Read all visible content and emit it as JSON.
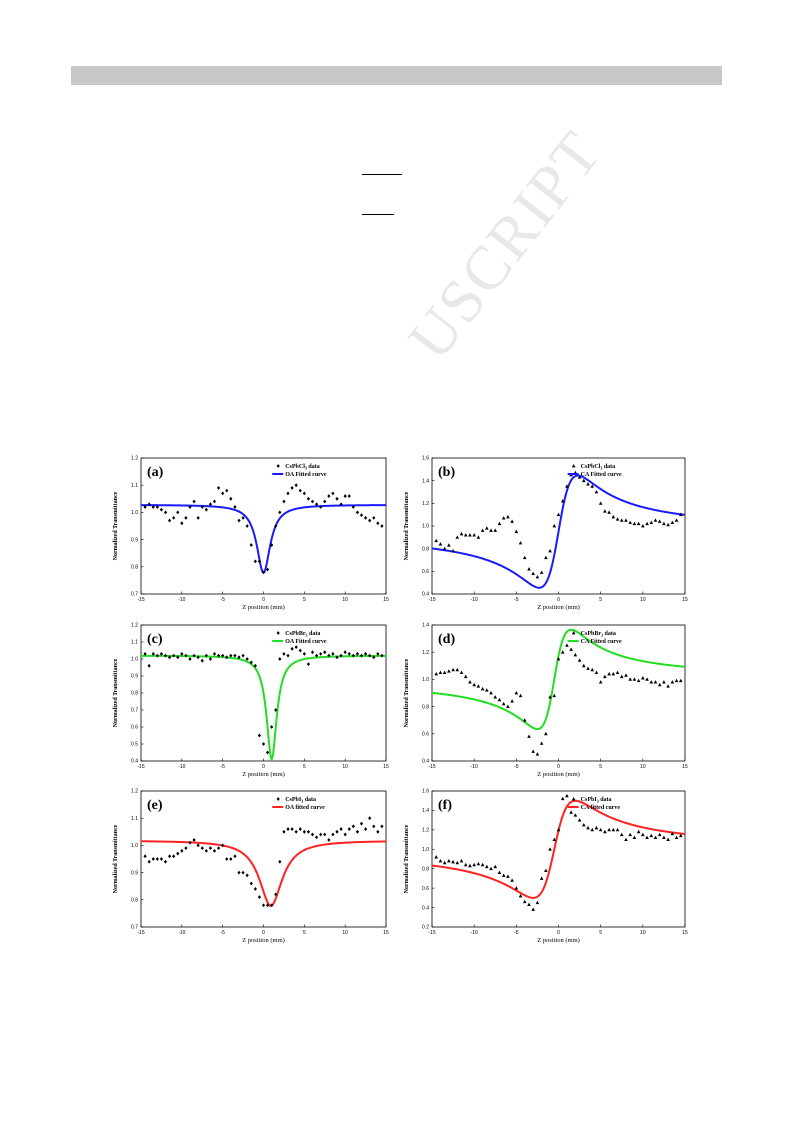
{
  "page": {
    "header_bar_color": "#c8c8c8"
  },
  "watermark": {
    "text": "MANUSCRIPT",
    "visible_text": "USCRIPT"
  },
  "chart_data": [
    {
      "id": "a",
      "type": "scatter",
      "panel_label": "(a)",
      "xlabel": "Z position (mm)",
      "ylabel": "Normalized Transmittance",
      "xlim": [
        -15,
        15
      ],
      "ylim": [
        0.7,
        1.2
      ],
      "xticks": [
        -15,
        -10,
        -5,
        0,
        5,
        10,
        15
      ],
      "yticks": [
        0.7,
        0.8,
        0.9,
        1.0,
        1.1,
        1.2
      ],
      "legend_position": "top-right",
      "series": [
        {
          "name": "CsPbCl",
          "subscript": "3",
          "suffix": " data",
          "marker": "diamond",
          "color": "#000000",
          "x": [
            -14.5,
            -14,
            -13.5,
            -13,
            -12.5,
            -12,
            -11.5,
            -11,
            -10.5,
            -10,
            -9.5,
            -9,
            -8.5,
            -8,
            -7.5,
            -7,
            -6.5,
            -6,
            -5.5,
            -5,
            -4.5,
            -4,
            -3.5,
            -3,
            -2.5,
            -2,
            -1.5,
            -1,
            -0.5,
            0,
            0.5,
            1,
            1.5,
            2,
            2.5,
            3,
            3.5,
            4,
            4.5,
            5,
            5.5,
            6,
            6.5,
            7,
            7.5,
            8,
            8.5,
            9,
            9.5,
            10,
            10.5,
            11,
            11.5,
            12,
            12.5,
            13,
            13.5,
            14,
            14.5
          ],
          "y": [
            1.02,
            1.03,
            1.02,
            1.02,
            1.01,
            1.0,
            0.97,
            0.98,
            1.0,
            0.96,
            0.98,
            1.02,
            1.04,
            0.98,
            1.02,
            1.01,
            1.03,
            1.04,
            1.09,
            1.07,
            1.08,
            1.05,
            1.02,
            0.97,
            0.98,
            0.95,
            0.88,
            0.82,
            0.82,
            0.78,
            0.79,
            0.88,
            0.95,
            1.0,
            1.04,
            1.07,
            1.09,
            1.1,
            1.08,
            1.07,
            1.05,
            1.04,
            1.03,
            1.02,
            1.04,
            1.06,
            1.07,
            1.05,
            1.03,
            1.06,
            1.06,
            1.02,
            1.0,
            0.99,
            0.98,
            0.97,
            0.98,
            0.96,
            0.95
          ]
        },
        {
          "name": "OA Fitted curve",
          "kind": "line",
          "color": "#1a1aff",
          "fit": {
            "baseline": 1.028,
            "depth": 0.25,
            "center": 0.0,
            "width": 1.0,
            "mode": "OA"
          }
        }
      ]
    },
    {
      "id": "b",
      "type": "scatter",
      "panel_label": "(b)",
      "xlabel": "Z position (mm)",
      "ylabel": "Normalized Transmittance",
      "xlim": [
        -15,
        15
      ],
      "ylim": [
        0.4,
        1.6
      ],
      "xticks": [
        -15,
        -10,
        -5,
        0,
        5,
        10,
        15
      ],
      "yticks": [
        0.4,
        0.6,
        0.8,
        1.0,
        1.2,
        1.4,
        1.6
      ],
      "legend_position": "top-right",
      "series": [
        {
          "name": "CsPbCl",
          "subscript": "3",
          "suffix": " data",
          "marker": "triangle",
          "color": "#000000",
          "x": [
            -14.5,
            -14,
            -13.5,
            -13,
            -12.5,
            -12,
            -11.5,
            -11,
            -10.5,
            -10,
            -9.5,
            -9,
            -8.5,
            -8,
            -7.5,
            -7,
            -6.5,
            -6,
            -5.5,
            -5,
            -4.5,
            -4,
            -3.5,
            -3,
            -2.5,
            -2,
            -1.5,
            -1,
            -0.5,
            0,
            0.5,
            1,
            1.5,
            2,
            2.5,
            3,
            3.5,
            4,
            4.5,
            5,
            5.5,
            6,
            6.5,
            7,
            7.5,
            8,
            8.5,
            9,
            9.5,
            10,
            10.5,
            11,
            11.5,
            12,
            12.5,
            13,
            13.5,
            14,
            14.5
          ],
          "y": [
            0.87,
            0.84,
            0.8,
            0.83,
            0.78,
            0.9,
            0.93,
            0.92,
            0.92,
            0.92,
            0.9,
            0.96,
            0.98,
            0.96,
            0.96,
            1.02,
            1.07,
            1.08,
            1.04,
            0.95,
            0.85,
            0.72,
            0.62,
            0.58,
            0.55,
            0.59,
            0.72,
            0.78,
            1.0,
            1.1,
            1.22,
            1.35,
            1.45,
            1.47,
            1.43,
            1.4,
            1.37,
            1.35,
            1.3,
            1.2,
            1.13,
            1.12,
            1.08,
            1.06,
            1.05,
            1.05,
            1.03,
            1.02,
            1.02,
            1.0,
            1.02,
            1.03,
            1.05,
            1.04,
            1.02,
            1.01,
            1.03,
            1.05,
            1.1
          ]
        },
        {
          "name": "CA Fitted curve",
          "kind": "line",
          "color": "#1a1aff",
          "fit": {
            "baseline": 0.95,
            "amp": 0.99,
            "center": 0.0,
            "width": 2.3,
            "mode": "CA"
          }
        }
      ]
    },
    {
      "id": "c",
      "type": "scatter",
      "panel_label": "(c)",
      "xlabel": "Z position (mm)",
      "ylabel": "Normalized Transmittance",
      "xlim": [
        -15,
        15
      ],
      "ylim": [
        0.4,
        1.2
      ],
      "xticks": [
        -15,
        -10,
        -5,
        0,
        5,
        10,
        15
      ],
      "yticks": [
        0.4,
        0.5,
        0.6,
        0.7,
        0.8,
        0.9,
        1.0,
        1.1,
        1.2
      ],
      "legend_position": "top-right",
      "series": [
        {
          "name": "CsPbBr",
          "subscript": "3",
          "suffix": " data",
          "marker": "diamond",
          "color": "#000000",
          "x": [
            -14.5,
            -14,
            -13.5,
            -13,
            -12.5,
            -12,
            -11.5,
            -11,
            -10.5,
            -10,
            -9.5,
            -9,
            -8.5,
            -8,
            -7.5,
            -7,
            -6.5,
            -6,
            -5.5,
            -5,
            -4.5,
            -4,
            -3.5,
            -3,
            -2.5,
            -2,
            -1.5,
            -1,
            -0.5,
            0,
            0.5,
            1,
            1.5,
            2,
            2.5,
            3,
            3.5,
            4,
            4.5,
            5,
            5.5,
            6,
            6.5,
            7,
            7.5,
            8,
            8.5,
            9,
            9.5,
            10,
            10.5,
            11,
            11.5,
            12,
            12.5,
            13,
            13.5,
            14,
            14.5
          ],
          "y": [
            1.03,
            0.96,
            1.03,
            1.02,
            1.03,
            1.02,
            1.01,
            1.02,
            1.01,
            1.03,
            1.02,
            1.0,
            1.02,
            1.01,
            0.99,
            1.02,
            1.0,
            1.03,
            1.02,
            1.02,
            1.01,
            1.02,
            1.02,
            1.01,
            1.02,
            1.0,
            0.98,
            0.96,
            0.55,
            0.5,
            0.45,
            0.6,
            0.7,
            1.0,
            1.03,
            1.02,
            1.06,
            1.07,
            1.05,
            1.03,
            0.97,
            1.04,
            1.02,
            1.03,
            1.04,
            1.02,
            1.03,
            1.01,
            1.02,
            1.04,
            1.03,
            1.02,
            1.03,
            1.02,
            1.03,
            1.02,
            1.01,
            1.03,
            1.02
          ]
        },
        {
          "name": "OA Fitted curve",
          "kind": "line",
          "color": "#22dd22",
          "fit": {
            "baseline": 1.02,
            "depth": 0.61,
            "center": 1.0,
            "width": 0.75,
            "mode": "OA"
          }
        }
      ]
    },
    {
      "id": "d",
      "type": "scatter",
      "panel_label": "(d)",
      "xlabel": "Z position (mm)",
      "ylabel": "Normalized Transmittance",
      "xlim": [
        -15,
        15
      ],
      "ylim": [
        0.4,
        1.4
      ],
      "xticks": [
        -15,
        -10,
        -5,
        0,
        5,
        10,
        15
      ],
      "yticks": [
        0.4,
        0.6,
        0.8,
        1.0,
        1.2,
        1.4
      ],
      "legend_position": "top-right",
      "series": [
        {
          "name": "CsPbBr",
          "subscript": "3",
          "suffix": " data",
          "marker": "triangle",
          "color": "#000000",
          "x": [
            -14.5,
            -14,
            -13.5,
            -13,
            -12.5,
            -12,
            -11.5,
            -11,
            -10.5,
            -10,
            -9.5,
            -9,
            -8.5,
            -8,
            -7.5,
            -7,
            -6.5,
            -6,
            -5.5,
            -5,
            -4.5,
            -4,
            -3.5,
            -3,
            -2.5,
            -2,
            -1.5,
            -1,
            -0.5,
            0,
            0.5,
            1,
            1.5,
            2,
            2.5,
            3,
            3.5,
            4,
            4.5,
            5,
            5.5,
            6,
            6.5,
            7,
            7.5,
            8,
            8.5,
            9,
            9.5,
            10,
            10.5,
            11,
            11.5,
            12,
            12.5,
            13,
            13.5,
            14,
            14.5
          ],
          "y": [
            1.04,
            1.05,
            1.05,
            1.06,
            1.07,
            1.07,
            1.05,
            1.02,
            0.98,
            0.96,
            0.95,
            0.93,
            0.92,
            0.9,
            0.87,
            0.85,
            0.82,
            0.8,
            0.84,
            0.9,
            0.88,
            0.7,
            0.58,
            0.47,
            0.45,
            0.53,
            0.6,
            0.87,
            0.88,
            1.15,
            1.2,
            1.25,
            1.22,
            1.18,
            1.14,
            1.1,
            1.08,
            1.07,
            1.05,
            0.98,
            1.02,
            1.04,
            1.04,
            1.05,
            1.02,
            1.03,
            1.0,
            1.0,
            0.99,
            1.01,
            1.0,
            0.98,
            0.98,
            0.96,
            0.98,
            0.95,
            0.98,
            0.99,
            0.99
          ]
        },
        {
          "name": "CA Fitted curve",
          "kind": "line",
          "color": "#22dd22",
          "fit": {
            "baseline": 1.0,
            "amp": 0.73,
            "center": -0.5,
            "width": 2.0,
            "mode": "CA"
          }
        }
      ]
    },
    {
      "id": "e",
      "type": "scatter",
      "panel_label": "(e)",
      "xlabel": "Z position (mm)",
      "ylabel": "Normalized Transmittance",
      "xlim": [
        -15,
        15
      ],
      "ylim": [
        0.7,
        1.2
      ],
      "xticks": [
        -15,
        -10,
        -5,
        0,
        5,
        10,
        15
      ],
      "yticks": [
        0.7,
        0.8,
        0.9,
        1.0,
        1.1,
        1.2
      ],
      "legend_position": "top-right",
      "series": [
        {
          "name": "CsPbI",
          "subscript": "3",
          "suffix": " data",
          "marker": "diamond",
          "color": "#000000",
          "x": [
            -14.5,
            -14,
            -13.5,
            -13,
            -12.5,
            -12,
            -11.5,
            -11,
            -10.5,
            -10,
            -9.5,
            -9,
            -8.5,
            -8,
            -7.5,
            -7,
            -6.5,
            -6,
            -5.5,
            -5,
            -4.5,
            -4,
            -3.5,
            -3,
            -2.5,
            -2,
            -1.5,
            -1,
            -0.5,
            0,
            0.5,
            1,
            1.5,
            2,
            2.5,
            3,
            3.5,
            4,
            4.5,
            5,
            5.5,
            6,
            6.5,
            7,
            7.5,
            8,
            8.5,
            9,
            9.5,
            10,
            10.5,
            11,
            11.5,
            12,
            12.5,
            13,
            13.5,
            14,
            14.5
          ],
          "y": [
            0.96,
            0.94,
            0.95,
            0.95,
            0.95,
            0.94,
            0.96,
            0.96,
            0.97,
            0.98,
            0.99,
            1.01,
            1.02,
            1.0,
            0.99,
            0.98,
            0.99,
            0.98,
            0.99,
            1.0,
            0.95,
            0.95,
            0.96,
            0.9,
            0.9,
            0.89,
            0.86,
            0.84,
            0.81,
            0.78,
            0.78,
            0.78,
            0.82,
            0.94,
            1.05,
            1.06,
            1.06,
            1.05,
            1.06,
            1.05,
            1.05,
            1.04,
            1.03,
            1.04,
            1.04,
            1.02,
            1.04,
            1.05,
            1.06,
            1.04,
            1.06,
            1.07,
            1.05,
            1.08,
            1.06,
            1.1,
            1.07,
            1.05,
            1.07
          ]
        },
        {
          "name": "OA fitted curve",
          "kind": "line",
          "color": "#ff2222",
          "fit": {
            "baseline": 1.018,
            "depth": 0.24,
            "center": 0.9,
            "width": 1.7,
            "mode": "OA"
          }
        }
      ]
    },
    {
      "id": "f",
      "type": "scatter",
      "panel_label": "(f)",
      "xlabel": "Z position (mm)",
      "ylabel": "Normalized Transmittance",
      "xlim": [
        -15,
        15
      ],
      "ylim": [
        0.2,
        1.6
      ],
      "xticks": [
        -15,
        -10,
        -5,
        0,
        5,
        10,
        15
      ],
      "yticks": [
        0.2,
        0.4,
        0.6,
        0.8,
        1.0,
        1.2,
        1.4,
        1.6
      ],
      "legend_position": "top-right",
      "series": [
        {
          "name": "CsPbI",
          "subscript": "3",
          "suffix": " data",
          "marker": "triangle",
          "color": "#000000",
          "x": [
            -14.5,
            -14,
            -13.5,
            -13,
            -12.5,
            -12,
            -11.5,
            -11,
            -10.5,
            -10,
            -9.5,
            -9,
            -8.5,
            -8,
            -7.5,
            -7,
            -6.5,
            -6,
            -5.5,
            -5,
            -4.5,
            -4,
            -3.5,
            -3,
            -2.5,
            -2,
            -1.5,
            -1,
            -0.5,
            0,
            0.5,
            1,
            1.5,
            2,
            2.5,
            3,
            3.5,
            4,
            4.5,
            5,
            5.5,
            6,
            6.5,
            7,
            7.5,
            8,
            8.5,
            9,
            9.5,
            10,
            10.5,
            11,
            11.5,
            12,
            12.5,
            13,
            13.5,
            14,
            14.5
          ],
          "y": [
            0.92,
            0.88,
            0.86,
            0.88,
            0.87,
            0.86,
            0.88,
            0.84,
            0.83,
            0.84,
            0.85,
            0.84,
            0.82,
            0.8,
            0.82,
            0.76,
            0.73,
            0.72,
            0.68,
            0.6,
            0.52,
            0.46,
            0.43,
            0.38,
            0.45,
            0.7,
            0.78,
            1.0,
            1.1,
            1.2,
            1.52,
            1.55,
            1.38,
            1.35,
            1.3,
            1.25,
            1.22,
            1.2,
            1.22,
            1.2,
            1.18,
            1.2,
            1.2,
            1.2,
            1.15,
            1.1,
            1.15,
            1.12,
            1.18,
            1.15,
            1.12,
            1.14,
            1.12,
            1.15,
            1.12,
            1.1,
            1.16,
            1.12,
            1.14
          ]
        },
        {
          "name": "CA fitted curve",
          "kind": "line",
          "color": "#ff2222",
          "fit": {
            "baseline": 1.0,
            "amp": 1.0,
            "center": -0.5,
            "width": 2.5,
            "mode": "CA"
          }
        }
      ]
    }
  ]
}
